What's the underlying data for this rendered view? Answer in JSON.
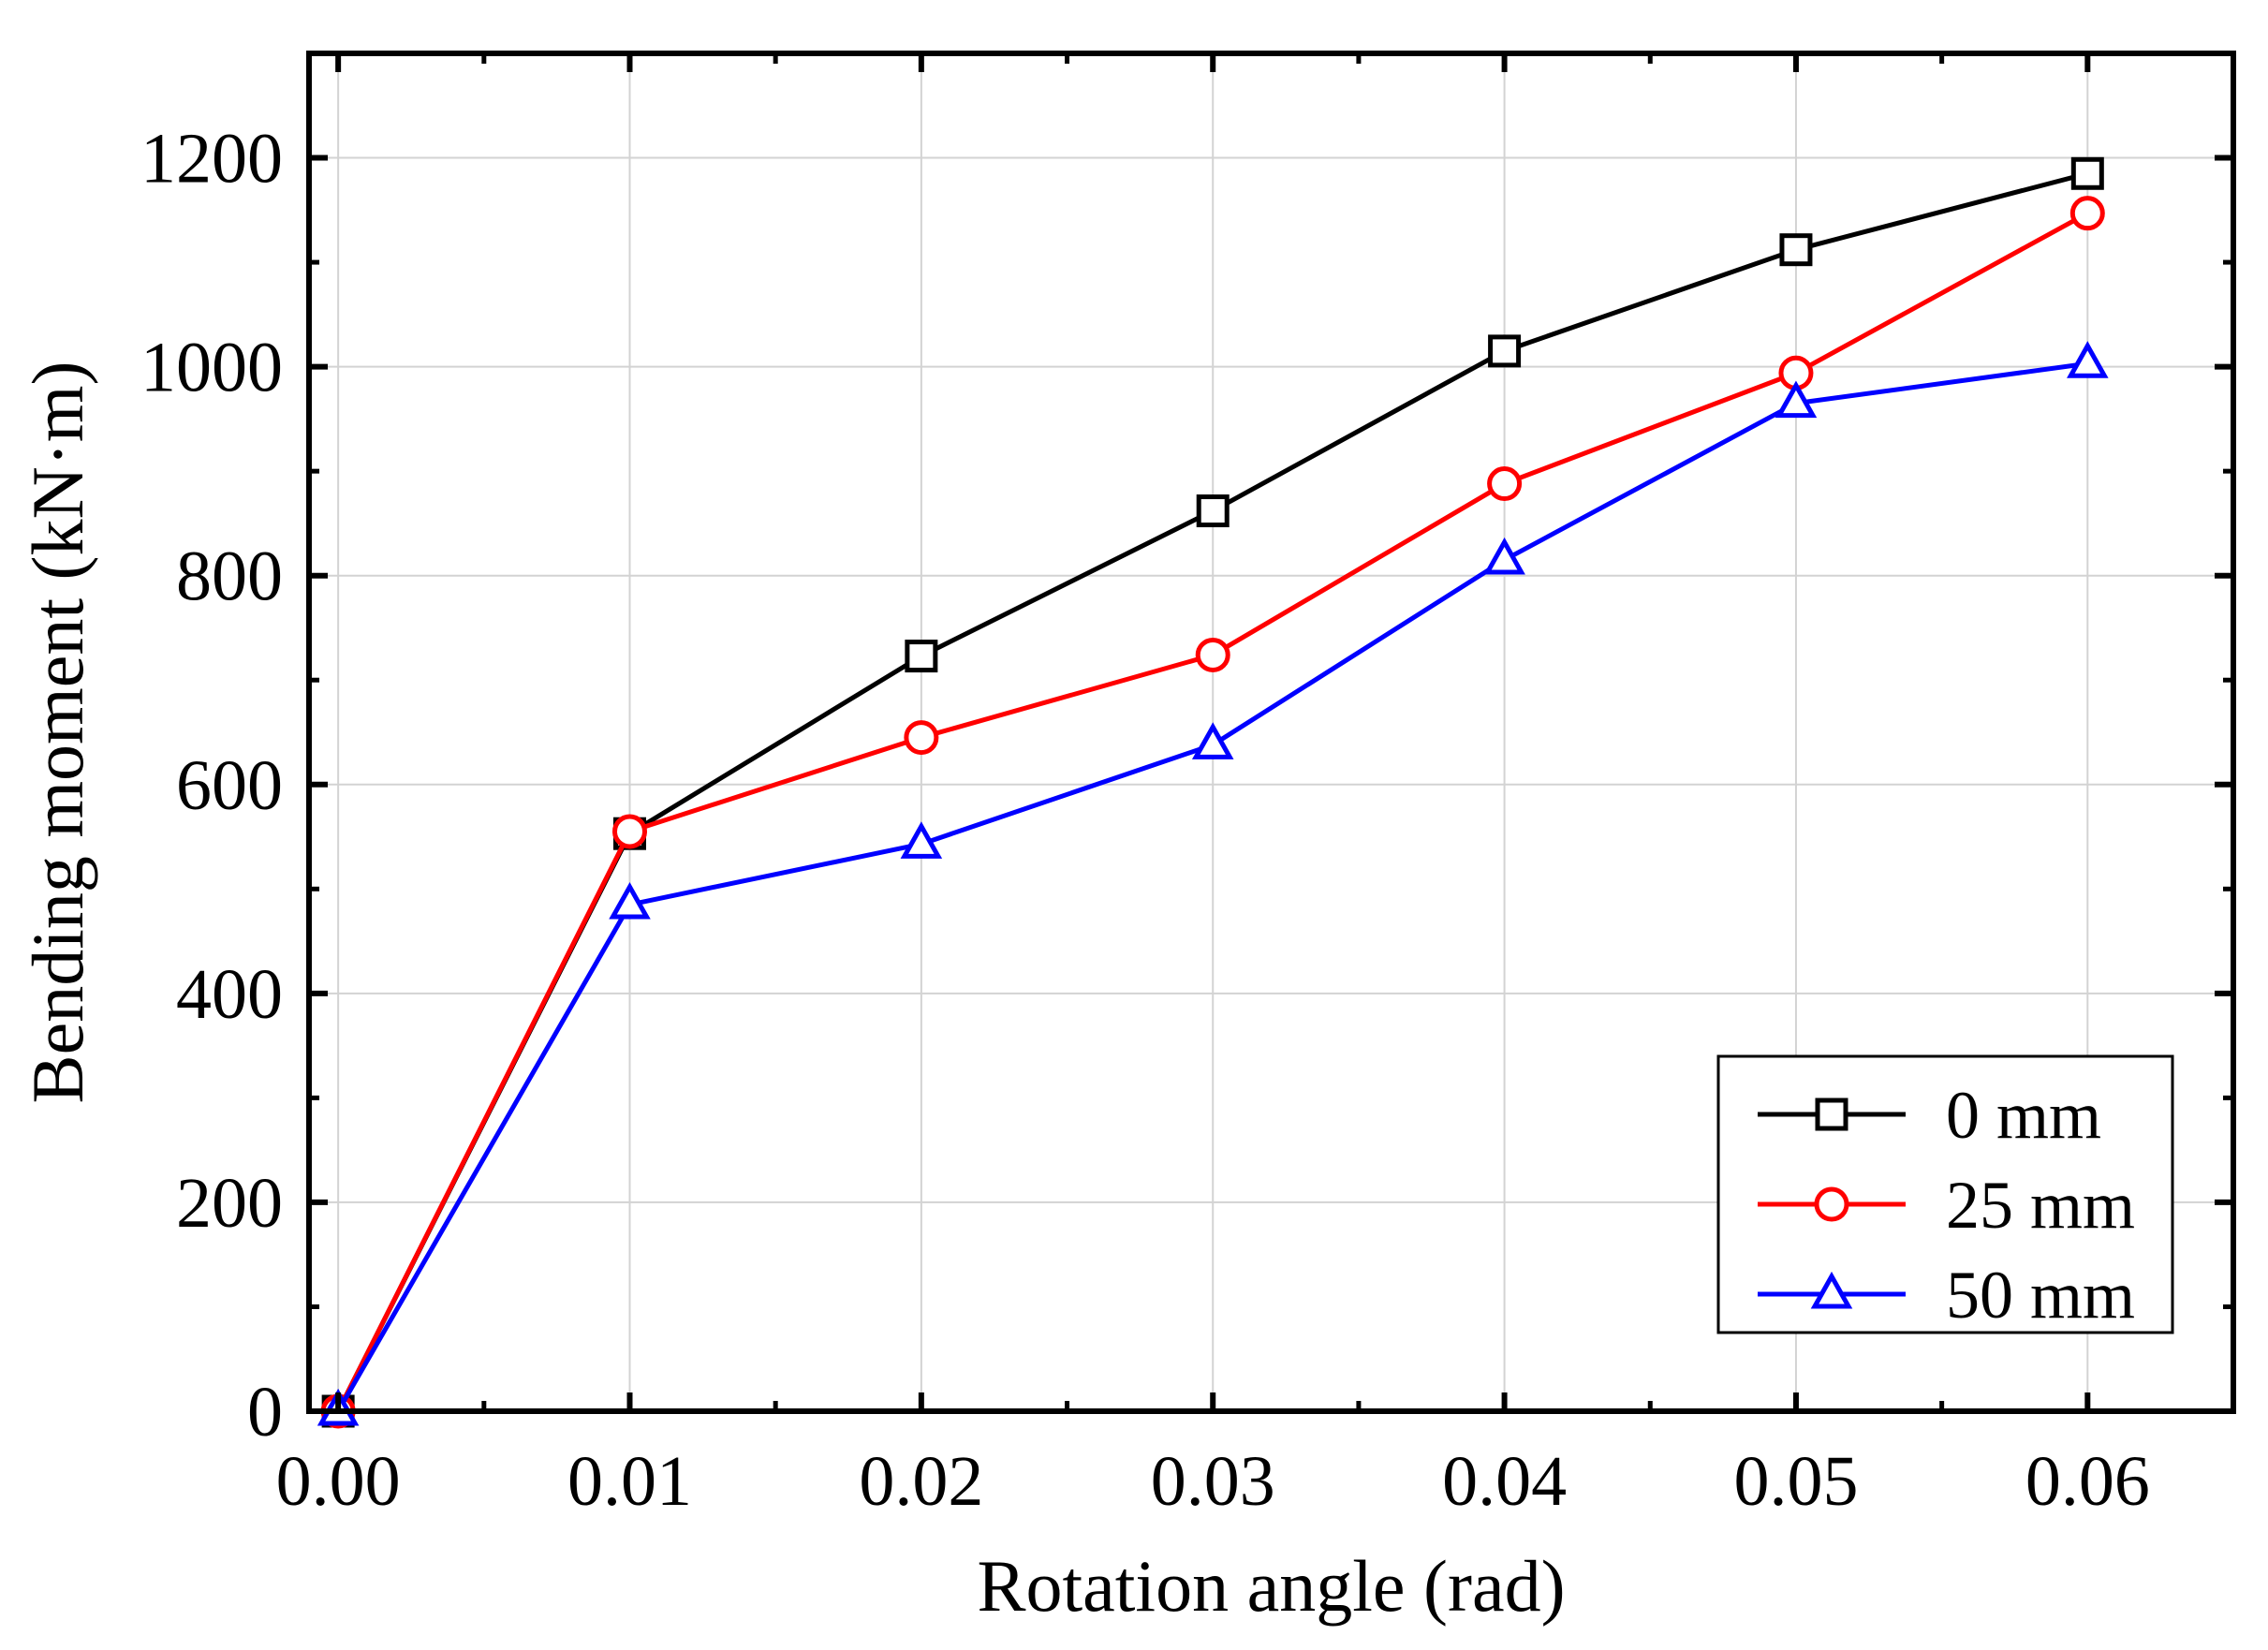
{
  "chart_data": {
    "type": "line",
    "title": "",
    "xlabel": "Rotation angle (rad)",
    "ylabel": "Bending moment (kN·m)",
    "xlim": [
      -0.001,
      0.065
    ],
    "ylim": [
      0,
      1300
    ],
    "x_ticks": [
      0.0,
      0.01,
      0.02,
      0.03,
      0.04,
      0.05,
      0.06
    ],
    "x_tick_labels": [
      "0.00",
      "0.01",
      "0.02",
      "0.03",
      "0.04",
      "0.05",
      "0.06"
    ],
    "y_ticks": [
      0,
      200,
      400,
      600,
      800,
      1000,
      1200
    ],
    "y_tick_labels": [
      "0",
      "200",
      "400",
      "600",
      "800",
      "1000",
      "1200"
    ],
    "grid": true,
    "legend_position": "bottom-right",
    "x": [
      0.0,
      0.01,
      0.02,
      0.03,
      0.04,
      0.05,
      0.06
    ],
    "series": [
      {
        "name": "0 mm",
        "color": "#000000",
        "marker": "square",
        "values": [
          0,
          553,
          723,
          862,
          1015,
          1112,
          1185
        ]
      },
      {
        "name": "25 mm",
        "color": "#ff0000",
        "marker": "circle",
        "values": [
          0,
          555,
          645,
          724,
          888,
          994,
          1147
        ]
      },
      {
        "name": "50 mm",
        "color": "#0000ff",
        "marker": "triangle",
        "values": [
          0,
          485,
          543,
          638,
          815,
          965,
          1003
        ]
      }
    ]
  }
}
